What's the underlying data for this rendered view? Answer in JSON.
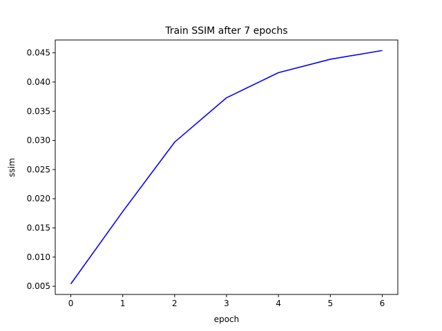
{
  "chart_data": {
    "type": "line",
    "title": "Train SSIM after 7 epochs",
    "xlabel": "epoch",
    "ylabel": "ssim",
    "x": [
      0,
      1,
      2,
      3,
      4,
      5,
      6
    ],
    "series": [
      {
        "values": [
          0.0054,
          0.0178,
          0.0297,
          0.0373,
          0.0416,
          0.0439,
          0.0454
        ],
        "color": "#0000ff"
      }
    ],
    "xlim": [
      -0.3,
      6.3
    ],
    "ylim": [
      0.0036,
      0.0472
    ],
    "xticks": [
      "0",
      "1",
      "2",
      "3",
      "4",
      "5",
      "6"
    ],
    "yticks": [
      "0.005",
      "0.010",
      "0.015",
      "0.020",
      "0.025",
      "0.030",
      "0.035",
      "0.040",
      "0.045"
    ],
    "grid": false,
    "legend": "none"
  }
}
